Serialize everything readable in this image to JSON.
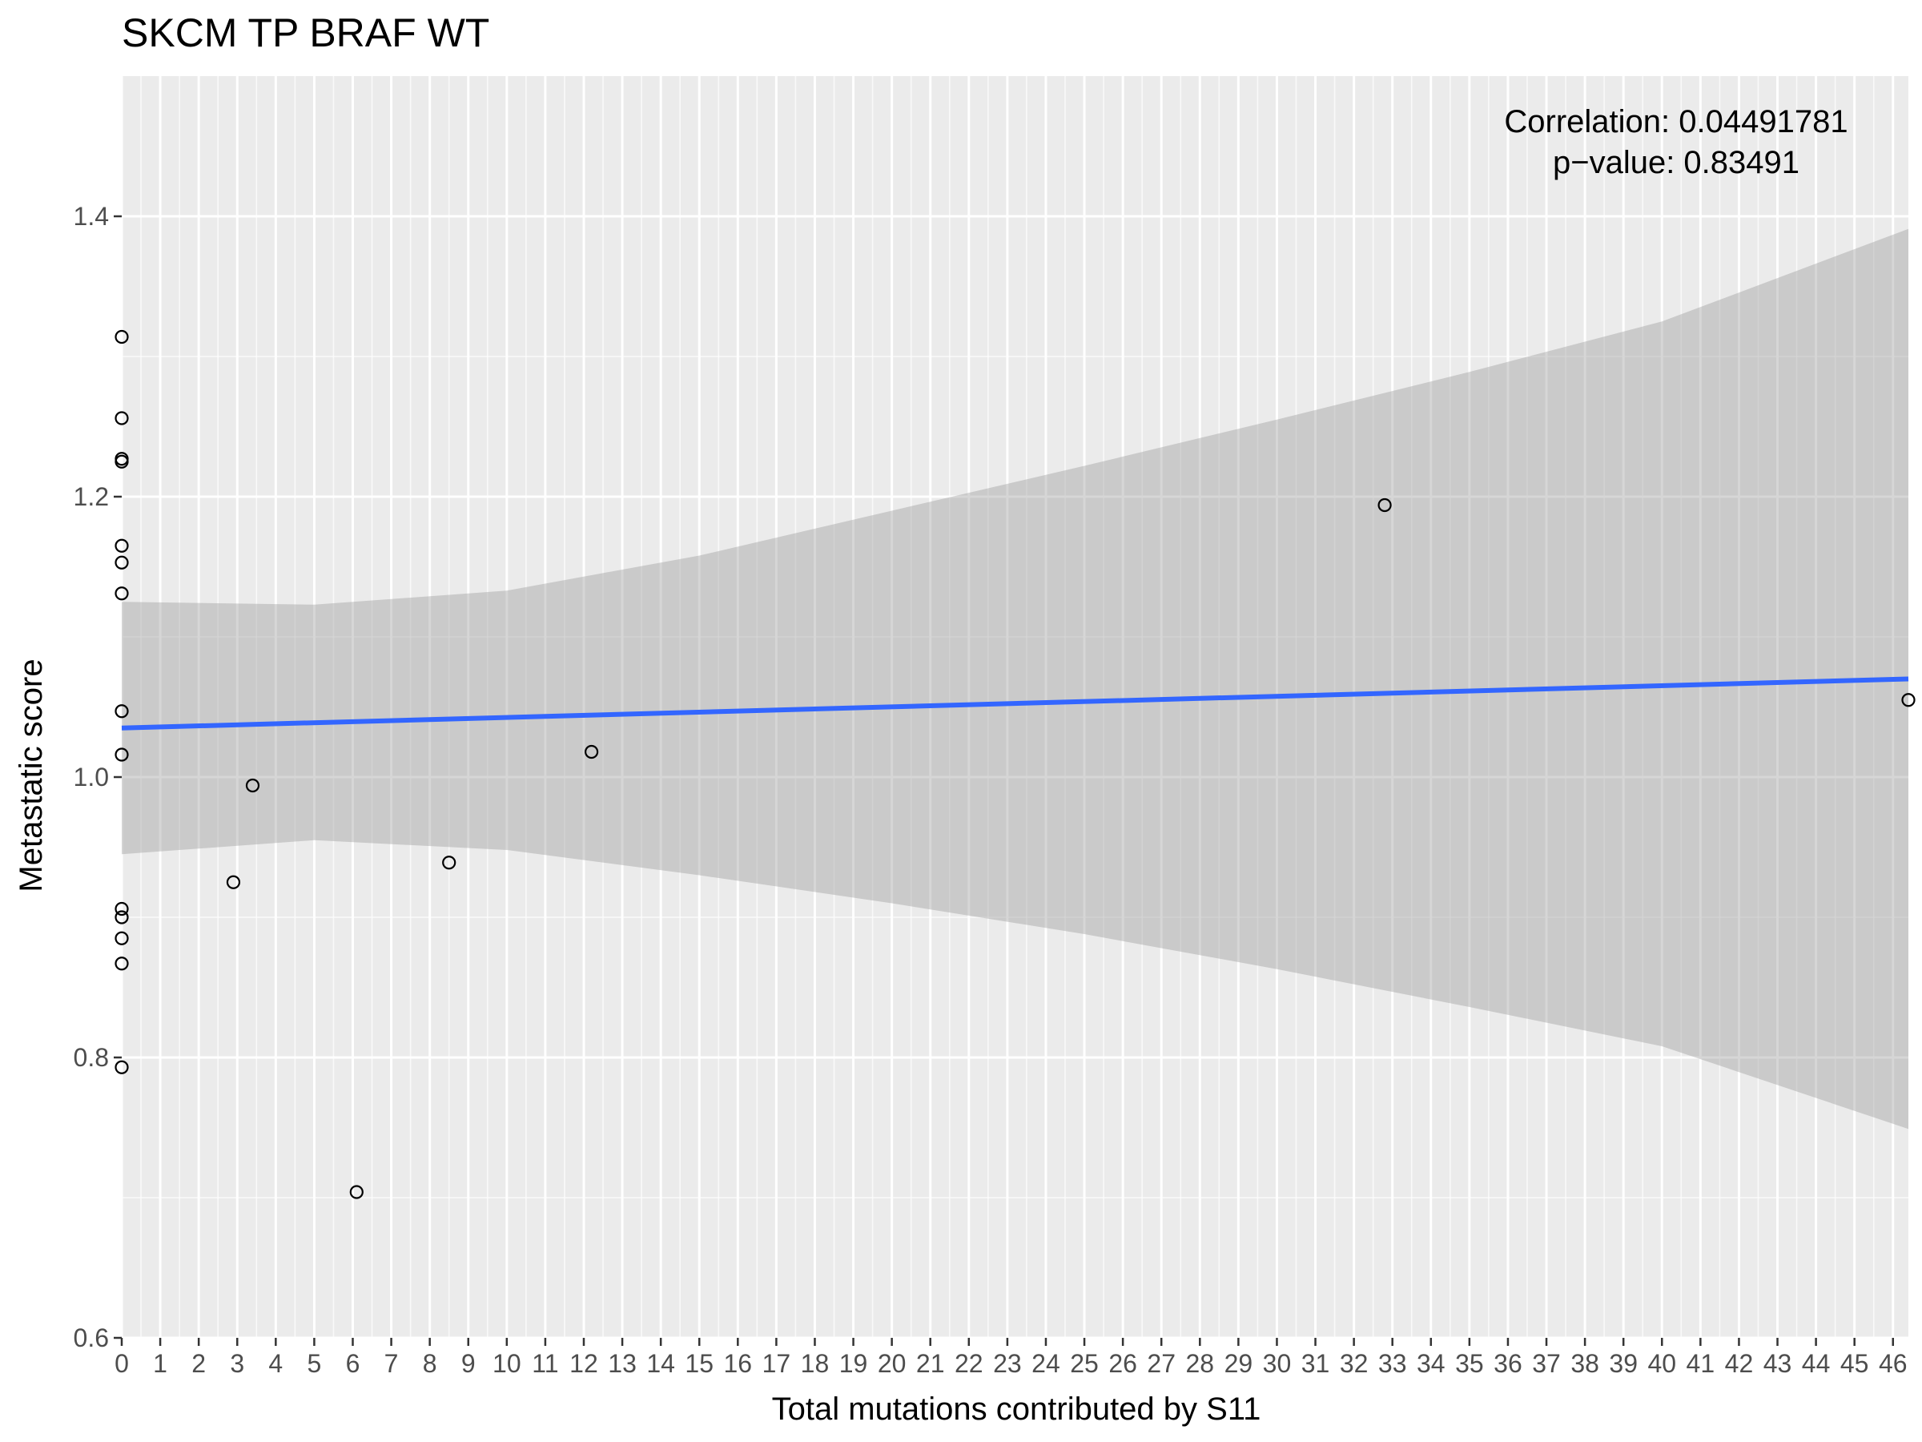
{
  "chart_data": {
    "type": "scatter",
    "title": "SKCM TP BRAF WT",
    "xlabel": "Total mutations contributed by S11",
    "ylabel": "Metastatic score",
    "xlim": [
      0,
      46.4
    ],
    "ylim": [
      0.6,
      1.5
    ],
    "x_ticks": [
      0,
      1,
      2,
      3,
      4,
      5,
      6,
      7,
      8,
      9,
      10,
      11,
      12,
      13,
      14,
      15,
      16,
      17,
      18,
      19,
      20,
      21,
      22,
      23,
      24,
      25,
      26,
      27,
      28,
      29,
      30,
      31,
      32,
      33,
      34,
      35,
      36,
      37,
      38,
      39,
      40,
      41,
      42,
      43,
      44,
      45,
      46
    ],
    "x_tick_labels": [
      "0",
      "1",
      "2",
      "3",
      "4",
      "5",
      "6",
      "7",
      "8",
      "9",
      "10",
      "11",
      "12",
      "13",
      "14",
      "15",
      "16",
      "17",
      "18",
      "19",
      "20",
      "21",
      "22",
      "23",
      "24",
      "25",
      "26",
      "27",
      "28",
      "29",
      "30",
      "31",
      "32",
      "33",
      "34",
      "35",
      "36",
      "37",
      "38",
      "39",
      "40",
      "41",
      "42",
      "43",
      "44",
      "45",
      "46"
    ],
    "y_ticks": [
      0.6,
      0.8,
      1.0,
      1.2,
      1.4
    ],
    "y_tick_labels": [
      "0.6",
      "0.8",
      "1.0",
      "1.2",
      "1.4"
    ],
    "grid": true,
    "points": [
      {
        "x": 0,
        "y": 1.314
      },
      {
        "x": 0,
        "y": 1.256
      },
      {
        "x": 0,
        "y": 1.227
      },
      {
        "x": 0,
        "y": 1.225
      },
      {
        "x": 0,
        "y": 1.165
      },
      {
        "x": 0,
        "y": 1.153
      },
      {
        "x": 0,
        "y": 1.131
      },
      {
        "x": 0,
        "y": 1.047
      },
      {
        "x": 0,
        "y": 1.016
      },
      {
        "x": 0,
        "y": 0.906
      },
      {
        "x": 0,
        "y": 0.9
      },
      {
        "x": 0,
        "y": 0.885
      },
      {
        "x": 0,
        "y": 0.867
      },
      {
        "x": 0,
        "y": 0.793
      },
      {
        "x": 2.9,
        "y": 0.925
      },
      {
        "x": 3.4,
        "y": 0.994
      },
      {
        "x": 6.1,
        "y": 0.704
      },
      {
        "x": 8.5,
        "y": 0.939
      },
      {
        "x": 12.2,
        "y": 1.018
      },
      {
        "x": 32.8,
        "y": 1.194
      },
      {
        "x": 46.4,
        "y": 1.055
      }
    ],
    "trend_line": {
      "x": [
        0,
        46.4
      ],
      "y": [
        1.035,
        1.07
      ],
      "color": "#3366ff"
    },
    "confidence_band": {
      "x": [
        0,
        5,
        10,
        15,
        20,
        25,
        30,
        35,
        40,
        46.4
      ],
      "lower": [
        0.945,
        0.955,
        0.948,
        0.93,
        0.91,
        0.888,
        0.863,
        0.836,
        0.808,
        0.749
      ],
      "upper": [
        1.125,
        1.123,
        1.133,
        1.158,
        1.19,
        1.222,
        1.255,
        1.289,
        1.325,
        1.391
      ],
      "color": "#999999"
    },
    "annotations": [
      "Correlation: 0.04491781",
      "p−value: 0.83491"
    ],
    "colors": {
      "panel": "#ebebeb",
      "grid": "#ffffff",
      "point": "#000000",
      "line": "#3366ff"
    }
  }
}
